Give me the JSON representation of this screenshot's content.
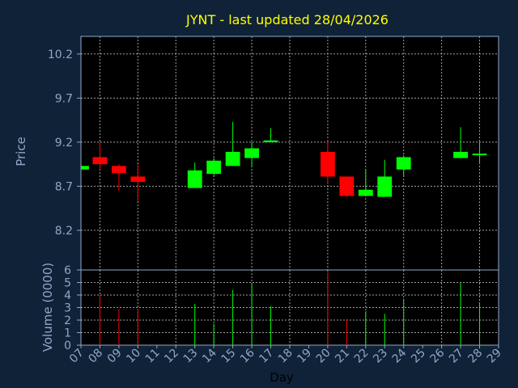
{
  "colors": {
    "background": "#0f2238",
    "plot_background": "#000000",
    "axis": "#8fa8c8",
    "grid": "#c8c8c8",
    "title": "#ffff00",
    "label": "#8fa8c8",
    "up": "#00ff00",
    "down": "#ff0000"
  },
  "chart_data": [
    {
      "type": "candlestick",
      "title": "JYNT - last updated 28/04/2026",
      "ylabel": "Price",
      "ylim": [
        7.75,
        10.4
      ],
      "yticks": [
        8.2,
        8.7,
        9.2,
        9.7,
        10.2
      ],
      "ytick_labels": [
        "8.2",
        "8.7",
        "9.2",
        "9.7",
        "10.2"
      ],
      "grid": true,
      "candles": [
        {
          "day": 7,
          "open": 8.89,
          "high": 8.93,
          "low": 8.89,
          "close": 8.93
        },
        {
          "day": 8,
          "open": 9.03,
          "high": 9.2,
          "low": 8.89,
          "close": 8.95
        },
        {
          "day": 9,
          "open": 8.93,
          "high": 8.95,
          "low": 8.65,
          "close": 8.85
        },
        {
          "day": 10,
          "open": 8.81,
          "high": 8.95,
          "low": 8.53,
          "close": 8.75
        },
        {
          "day": 13,
          "open": 8.68,
          "high": 8.97,
          "low": 8.68,
          "close": 8.88
        },
        {
          "day": 14,
          "open": 8.84,
          "high": 9.02,
          "low": 8.81,
          "close": 8.99
        },
        {
          "day": 15,
          "open": 8.93,
          "high": 9.43,
          "low": 8.93,
          "close": 9.09
        },
        {
          "day": 16,
          "open": 9.02,
          "high": 9.2,
          "low": 8.92,
          "close": 9.13
        },
        {
          "day": 17,
          "open": 9.2,
          "high": 9.36,
          "low": 9.2,
          "close": 9.22
        },
        {
          "day": 20,
          "open": 9.09,
          "high": 9.22,
          "low": 8.74,
          "close": 8.81
        },
        {
          "day": 21,
          "open": 8.81,
          "high": 8.81,
          "low": 8.58,
          "close": 8.59
        },
        {
          "day": 22,
          "open": 8.59,
          "high": 8.89,
          "low": 8.59,
          "close": 8.66
        },
        {
          "day": 23,
          "open": 8.58,
          "high": 9.0,
          "low": 8.58,
          "close": 8.81
        },
        {
          "day": 24,
          "open": 8.89,
          "high": 9.05,
          "low": 8.81,
          "close": 9.03
        },
        {
          "day": 27,
          "open": 9.02,
          "high": 9.37,
          "low": 9.02,
          "close": 9.09
        },
        {
          "day": 28,
          "open": 9.06,
          "high": 9.2,
          "low": 8.96,
          "close": 9.07
        }
      ]
    },
    {
      "type": "bar",
      "ylabel": "Volume (0000)",
      "xlabel": "Day",
      "ylim": [
        0,
        6
      ],
      "yticks": [
        0,
        1,
        2,
        3,
        4,
        5,
        6
      ],
      "ytick_labels": [
        "0",
        "1",
        "2",
        "3",
        "4",
        "5",
        "6"
      ],
      "xlim": [
        7,
        29
      ],
      "xticks": [
        "07",
        "08",
        "09",
        "10",
        "11",
        "12",
        "13",
        "14",
        "15",
        "16",
        "17",
        "18",
        "19",
        "20",
        "21",
        "22",
        "23",
        "24",
        "25",
        "26",
        "27",
        "28",
        "29"
      ],
      "bars": [
        {
          "day": 8,
          "value": 4.0,
          "dir": "down"
        },
        {
          "day": 9,
          "value": 2.9,
          "dir": "down"
        },
        {
          "day": 10,
          "value": 2.9,
          "dir": "down"
        },
        {
          "day": 13,
          "value": 3.3,
          "dir": "up"
        },
        {
          "day": 14,
          "value": 1.7,
          "dir": "up"
        },
        {
          "day": 15,
          "value": 4.4,
          "dir": "up"
        },
        {
          "day": 16,
          "value": 4.9,
          "dir": "up"
        },
        {
          "day": 17,
          "value": 3.1,
          "dir": "up"
        },
        {
          "day": 20,
          "value": 5.8,
          "dir": "down"
        },
        {
          "day": 21,
          "value": 2.1,
          "dir": "down"
        },
        {
          "day": 22,
          "value": 2.7,
          "dir": "up"
        },
        {
          "day": 23,
          "value": 2.5,
          "dir": "up"
        },
        {
          "day": 24,
          "value": 3.7,
          "dir": "up"
        },
        {
          "day": 27,
          "value": 5.0,
          "dir": "up"
        },
        {
          "day": 28,
          "value": 3.3,
          "dir": "up"
        }
      ]
    }
  ]
}
